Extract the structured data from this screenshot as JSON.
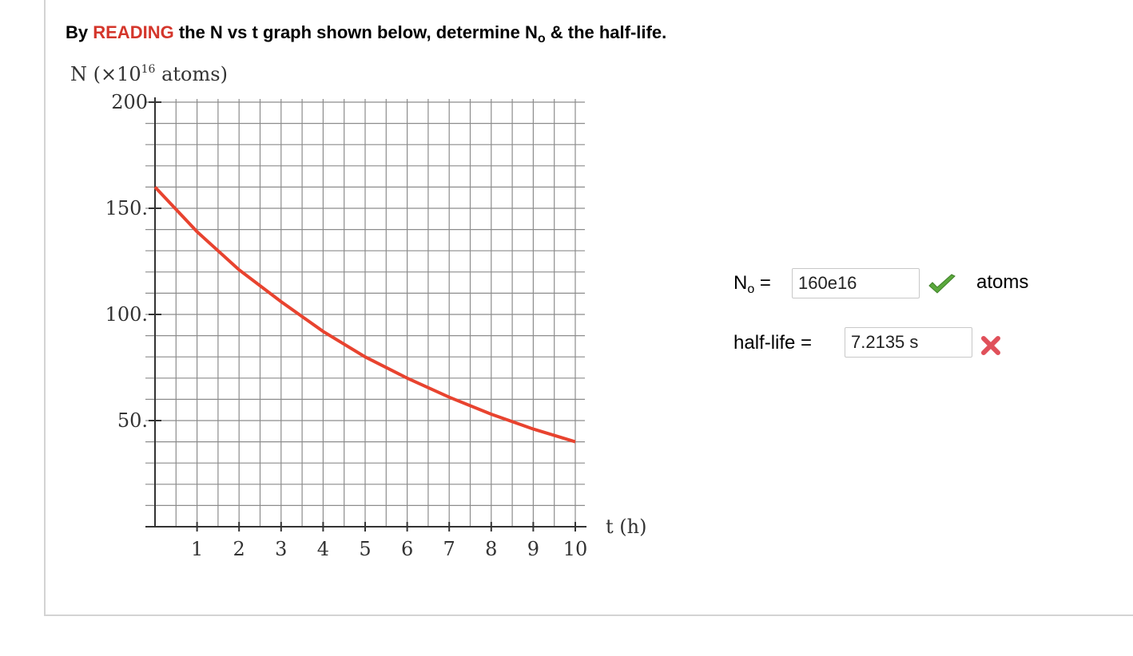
{
  "question": {
    "prefix": "By ",
    "highlight": "READING",
    "middle": " the N vs t graph shown below, determine N",
    "sub": "o",
    "suffix": " & the half-life."
  },
  "graph": {
    "y_axis_label_main": "N (×10",
    "y_axis_label_exp": "16",
    "y_axis_label_unit": " atoms)",
    "x_axis_label": "t (h)",
    "curve_color": "#e8432f"
  },
  "chart_data": {
    "type": "line",
    "title": "",
    "xlabel": "t (h)",
    "ylabel": "N (×10^16 atoms)",
    "xlim": [
      0,
      10
    ],
    "ylim": [
      0,
      200
    ],
    "x_ticks": [
      "1",
      "2",
      "3",
      "4",
      "5",
      "6",
      "7",
      "8",
      "9",
      "10"
    ],
    "y_ticks": [
      "50.",
      "100.",
      "150.",
      "200"
    ],
    "grid": true,
    "series": [
      {
        "color": "#e8432f",
        "x": [
          0,
          1,
          2,
          3,
          4,
          5,
          6,
          7,
          8,
          9,
          10
        ],
        "y": [
          160,
          139,
          121,
          106,
          92,
          80,
          70,
          61,
          53,
          46,
          40
        ]
      }
    ]
  },
  "answers": {
    "n0": {
      "label_main": "N",
      "label_sub": "o",
      "equals": " =",
      "value": "160e16",
      "status": "correct",
      "status_icon": "checkmark-icon",
      "status_color": "#5aa83c",
      "units": "atoms"
    },
    "half_life": {
      "label": "half-life",
      "equals": " =",
      "value": "7.2135 s",
      "status": "incorrect",
      "status_icon": "cross-icon",
      "status_color": "#e0505a"
    }
  }
}
